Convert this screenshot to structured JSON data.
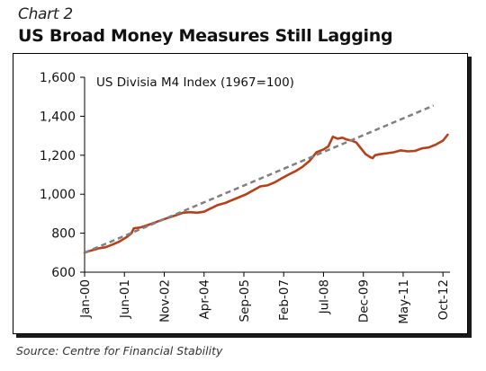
{
  "header": {
    "kicker": "Chart 2",
    "title": "US Broad Money Measures Still Lagging"
  },
  "footer": {
    "source": "Source: Centre for Financial Stability"
  },
  "chart_data": {
    "type": "line",
    "title": "",
    "xlabel": "",
    "ylabel": "",
    "annotation": "US Divisia M4 Index (1967=100)",
    "ylim": [
      600,
      1600
    ],
    "yticks": [
      600,
      800,
      1000,
      1200,
      1400,
      1600
    ],
    "ytick_labels": [
      "600",
      "800",
      "1,000",
      "1,200",
      "1,400",
      "1,600"
    ],
    "xticks": [
      "2000-01",
      "2001-06",
      "2002-11",
      "2004-04",
      "2005-09",
      "2007-02",
      "2008-07",
      "2009-12",
      "2011-05",
      "2012-10"
    ],
    "xtick_labels": [
      "Jan-00",
      "Jun-01",
      "Nov-02",
      "Apr-04",
      "Sep-05",
      "Feb-07",
      "Jul-08",
      "Dec-09",
      "May-11",
      "Oct-12"
    ],
    "xlim": [
      "2000-01",
      "2013-01"
    ],
    "grid": false,
    "colors": {
      "index": "#b5401a",
      "trend": "#808080"
    },
    "series": [
      {
        "style": "solid",
        "points": [
          [
            "2000-01",
            700
          ],
          [
            "2000-04",
            712
          ],
          [
            "2000-07",
            722
          ],
          [
            "2000-10",
            728
          ],
          [
            "2001-01",
            742
          ],
          [
            "2001-04",
            758
          ],
          [
            "2001-07",
            780
          ],
          [
            "2001-09",
            800
          ],
          [
            "2001-10",
            825
          ],
          [
            "2002-01",
            830
          ],
          [
            "2002-04",
            842
          ],
          [
            "2002-07",
            855
          ],
          [
            "2002-10",
            868
          ],
          [
            "2003-01",
            880
          ],
          [
            "2003-04",
            892
          ],
          [
            "2003-07",
            905
          ],
          [
            "2003-10",
            908
          ],
          [
            "2004-01",
            905
          ],
          [
            "2004-04",
            910
          ],
          [
            "2004-07",
            928
          ],
          [
            "2004-10",
            945
          ],
          [
            "2005-01",
            955
          ],
          [
            "2005-04",
            970
          ],
          [
            "2005-07",
            985
          ],
          [
            "2005-10",
            1000
          ],
          [
            "2006-01",
            1020
          ],
          [
            "2006-04",
            1040
          ],
          [
            "2006-07",
            1045
          ],
          [
            "2006-10",
            1060
          ],
          [
            "2007-01",
            1080
          ],
          [
            "2007-04",
            1100
          ],
          [
            "2007-07",
            1118
          ],
          [
            "2007-10",
            1140
          ],
          [
            "2008-01",
            1170
          ],
          [
            "2008-04",
            1215
          ],
          [
            "2008-07",
            1230
          ],
          [
            "2008-09",
            1245
          ],
          [
            "2008-11",
            1295
          ],
          [
            "2009-01",
            1285
          ],
          [
            "2009-03",
            1290
          ],
          [
            "2009-05",
            1280
          ],
          [
            "2009-07",
            1275
          ],
          [
            "2009-09",
            1265
          ],
          [
            "2009-11",
            1235
          ],
          [
            "2010-01",
            1205
          ],
          [
            "2010-03",
            1190
          ],
          [
            "2010-04",
            1185
          ],
          [
            "2010-05",
            1200
          ],
          [
            "2010-07",
            1205
          ],
          [
            "2010-10",
            1210
          ],
          [
            "2011-01",
            1215
          ],
          [
            "2011-04",
            1225
          ],
          [
            "2011-07",
            1220
          ],
          [
            "2011-10",
            1222
          ],
          [
            "2012-01",
            1235
          ],
          [
            "2012-04",
            1240
          ],
          [
            "2012-07",
            1255
          ],
          [
            "2012-10",
            1275
          ],
          [
            "2012-12",
            1305
          ]
        ]
      },
      {
        "style": "dashed",
        "points": [
          [
            "2000-01",
            700
          ],
          [
            "2012-06",
            1455
          ]
        ]
      }
    ]
  }
}
